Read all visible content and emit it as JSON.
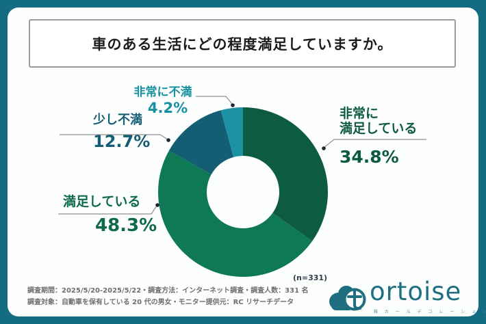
{
  "frame": {
    "color": "#136c82",
    "panel_bg": "#fdfefe"
  },
  "title": {
    "text": "車のある生活にどの程度満足していますか。"
  },
  "chart_data": {
    "type": "pie",
    "subtype": "donut",
    "title": "車のある生活にどの程度満足していますか。",
    "categories": [
      "非常に満足している",
      "満足している",
      "少し不満",
      "非常に不満"
    ],
    "values": [
      34.8,
      48.3,
      12.7,
      4.2
    ],
    "unit": "%",
    "colors": [
      "#0d5b42",
      "#0e7954",
      "#135e73",
      "#1a92a3"
    ],
    "start_angle_deg": 0,
    "direction": "clockwise",
    "sample_size": 331,
    "sample_size_label": "(n=331)"
  },
  "callouts": {
    "very_satisfied": {
      "label_line1": "非常に",
      "label_line2": "満足している",
      "value": "34.8%",
      "color": "#0c5a41"
    },
    "satisfied": {
      "label": "満足している",
      "value": "48.3%",
      "color": "#0f6a4b"
    },
    "slightly_dissatisfied": {
      "label": "少し不満",
      "value": "12.7%",
      "color": "#155d74"
    },
    "very_dissatisfied": {
      "label": "非常に不満",
      "value": "4.2%",
      "color": "#1691a2"
    }
  },
  "footer": {
    "line1": "調査期間：2025/5/20-2025/5/22・調査方法：インターネット調査・調査人数：331 名",
    "line2": "調査対象：自動車を保有している 20 代の男女・モニター提供元：RC リサーチデータ"
  },
  "logo": {
    "brand": "ortoise",
    "subtext": "株 カ ー ル デ コ レ ー シ ョ ン"
  }
}
